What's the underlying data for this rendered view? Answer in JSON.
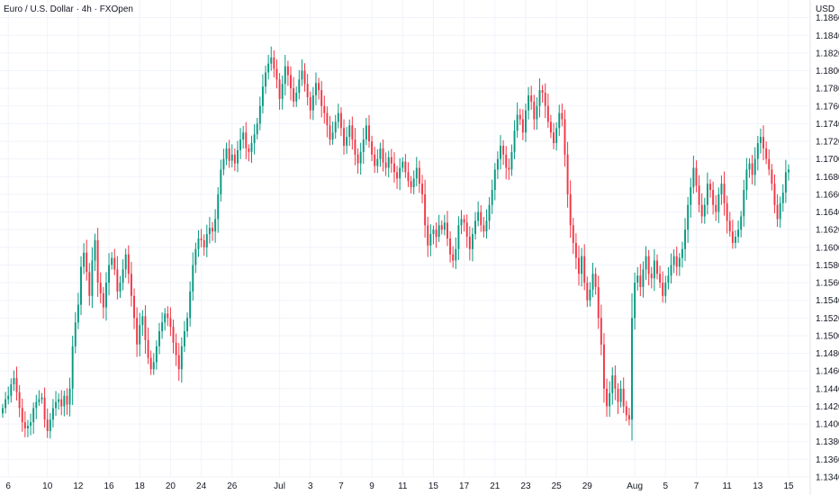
{
  "chart_data": {
    "type": "candlestick",
    "title": "Euro / U.S. Dollar · 4h · FXOpen",
    "currency": "USD",
    "ylim": [
      1.134,
      1.188
    ],
    "yticks": [
      "1.18600",
      "1.18400",
      "1.18200",
      "1.18000",
      "1.17800",
      "1.17600",
      "1.17400",
      "1.17200",
      "1.17000",
      "1.16800",
      "1.16600",
      "1.16400",
      "1.16200",
      "1.16000",
      "1.15800",
      "1.15600",
      "1.15400",
      "1.15200",
      "1.15000",
      "1.14800",
      "1.14600",
      "1.14400",
      "1.14200",
      "1.14000",
      "1.13800",
      "1.13600",
      "1.13400"
    ],
    "xticks": [
      {
        "label": "6",
        "i": 2
      },
      {
        "label": "10",
        "i": 16
      },
      {
        "label": "12",
        "i": 27
      },
      {
        "label": "16",
        "i": 38
      },
      {
        "label": "18",
        "i": 49
      },
      {
        "label": "20",
        "i": 60
      },
      {
        "label": "24",
        "i": 71
      },
      {
        "label": "26",
        "i": 82
      },
      {
        "label": "Jul",
        "i": 99
      },
      {
        "label": "3",
        "i": 110
      },
      {
        "label": "7",
        "i": 121
      },
      {
        "label": "9",
        "i": 132
      },
      {
        "label": "11",
        "i": 143
      },
      {
        "label": "15",
        "i": 154
      },
      {
        "label": "17",
        "i": 165
      },
      {
        "label": "21",
        "i": 176
      },
      {
        "label": "23",
        "i": 187
      },
      {
        "label": "25",
        "i": 198
      },
      {
        "label": "29",
        "i": 209
      },
      {
        "label": "Aug",
        "i": 226
      },
      {
        "label": "5",
        "i": 237
      },
      {
        "label": "7",
        "i": 248
      },
      {
        "label": "11",
        "i": 259
      },
      {
        "label": "13",
        "i": 270
      },
      {
        "label": "15",
        "i": 281
      }
    ],
    "closes": [
      1.1418,
      1.1428,
      1.1432,
      1.1445,
      1.1452,
      1.1436,
      1.1418,
      1.1402,
      1.1395,
      1.1398,
      1.1402,
      1.1418,
      1.1425,
      1.1428,
      1.143,
      1.1405,
      1.1392,
      1.1405,
      1.1418,
      1.1425,
      1.1428,
      1.142,
      1.1432,
      1.1422,
      1.144,
      1.1488,
      1.1515,
      1.1535,
      1.1578,
      1.1594,
      1.1572,
      1.1545,
      1.1585,
      1.1608,
      1.156,
      1.1548,
      1.1532,
      1.156,
      1.158,
      1.1588,
      1.1575,
      1.155,
      1.156,
      1.1575,
      1.1592,
      1.157,
      1.1545,
      1.152,
      1.149,
      1.1512,
      1.1522,
      1.1495,
      1.1475,
      1.1462,
      1.147,
      1.1488,
      1.1505,
      1.1515,
      1.1525,
      1.152,
      1.151,
      1.1492,
      1.1478,
      1.1462,
      1.1488,
      1.1505,
      1.152,
      1.155,
      1.158,
      1.1598,
      1.161,
      1.1608,
      1.16,
      1.1615,
      1.1622,
      1.1618,
      1.1632,
      1.166,
      1.1688,
      1.17,
      1.1712,
      1.1698,
      1.1705,
      1.1695,
      1.171,
      1.1722,
      1.173,
      1.1712,
      1.1708,
      1.1718,
      1.1728,
      1.174,
      1.176,
      1.1782,
      1.1798,
      1.1808,
      1.1815,
      1.1802,
      1.179,
      1.1768,
      1.1785,
      1.1805,
      1.1795,
      1.178,
      1.1765,
      1.1775,
      1.179,
      1.18,
      1.1785,
      1.177,
      1.1755,
      1.1772,
      1.1786,
      1.1778,
      1.176,
      1.1752,
      1.1738,
      1.1722,
      1.173,
      1.1742,
      1.1752,
      1.1735,
      1.1715,
      1.1725,
      1.1738,
      1.1722,
      1.1705,
      1.1695,
      1.1708,
      1.1722,
      1.1738,
      1.172,
      1.1705,
      1.1692,
      1.17,
      1.1712,
      1.1696,
      1.169,
      1.1702,
      1.1695,
      1.1685,
      1.1678,
      1.169,
      1.1697,
      1.1685,
      1.1675,
      1.1668,
      1.1678,
      1.169,
      1.1672,
      1.166,
      1.1625,
      1.1602,
      1.1615,
      1.162,
      1.1612,
      1.1625,
      1.162,
      1.1628,
      1.161,
      1.1592,
      1.1585,
      1.1598,
      1.1625,
      1.1632,
      1.1628,
      1.1612,
      1.1598,
      1.1615,
      1.163,
      1.164,
      1.1625,
      1.1618,
      1.163,
      1.1648,
      1.1665,
      1.1688,
      1.17,
      1.1715,
      1.1705,
      1.169,
      1.1688,
      1.1708,
      1.1732,
      1.175,
      1.1745,
      1.173,
      1.1755,
      1.1772,
      1.1765,
      1.1745,
      1.176,
      1.1778,
      1.1775,
      1.176,
      1.1742,
      1.173,
      1.1718,
      1.1735,
      1.1752,
      1.1745,
      1.1705,
      1.166,
      1.1625,
      1.1605,
      1.1588,
      1.157,
      1.159,
      1.156,
      1.154,
      1.1552,
      1.157,
      1.1555,
      1.152,
      1.149,
      1.144,
      1.142,
      1.1435,
      1.1455,
      1.144,
      1.1425,
      1.144,
      1.142,
      1.141,
      1.1405,
      1.152,
      1.156,
      1.1568,
      1.1555,
      1.1575,
      1.159,
      1.157,
      1.1565,
      1.1585,
      1.157,
      1.156,
      1.1545,
      1.156,
      1.1568,
      1.158,
      1.159,
      1.1578,
      1.1588,
      1.1598,
      1.162,
      1.1648,
      1.1668,
      1.169,
      1.167,
      1.1648,
      1.1635,
      1.1648,
      1.1672,
      1.1665,
      1.1648,
      1.164,
      1.166,
      1.1672,
      1.165,
      1.163,
      1.1618,
      1.1605,
      1.1612,
      1.162,
      1.1635,
      1.1665,
      1.1688,
      1.1695,
      1.1682,
      1.17,
      1.1718,
      1.1725,
      1.1712,
      1.17,
      1.1688,
      1.1672,
      1.1648,
      1.1632,
      1.165,
      1.1662,
      1.1685,
      1.1688
    ]
  }
}
